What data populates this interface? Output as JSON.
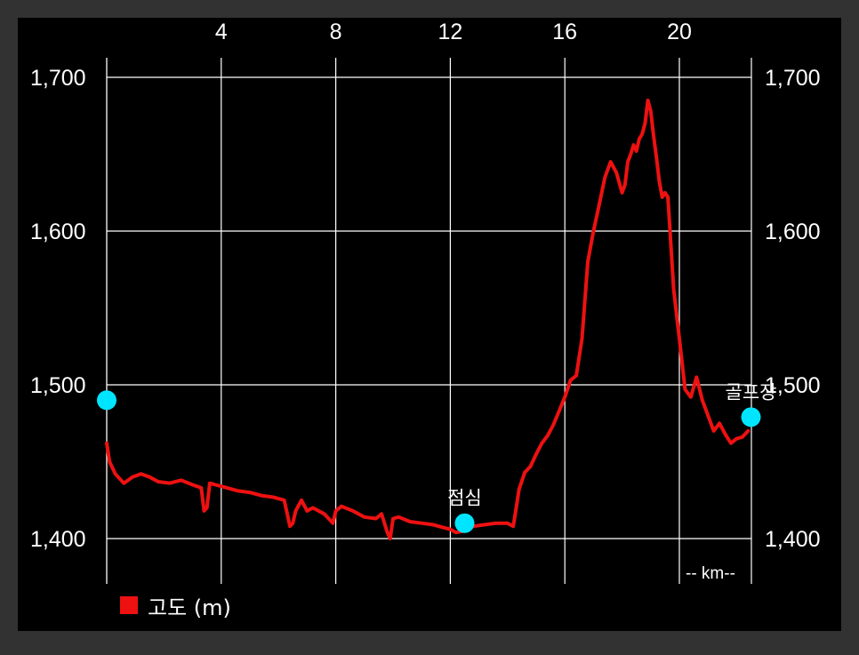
{
  "chart_data": {
    "type": "line",
    "x_unit_label": "-- km--",
    "xlim": [
      0,
      22.5
    ],
    "ylim": [
      1375,
      1715
    ],
    "x_ticks": [
      4,
      8,
      12,
      16,
      20
    ],
    "x_tick_labels": [
      "4",
      "8",
      "12",
      "16",
      "20"
    ],
    "y_ticks": [
      1400,
      1500,
      1600,
      1700
    ],
    "y_tick_labels": [
      "1,400",
      "1,500",
      "1,600",
      "1,700"
    ],
    "grid": true,
    "legend_position": "bottom-left",
    "colors": {
      "background": "#000000",
      "frame": "#323232",
      "grid": "#ffffff",
      "series": "#ee1111",
      "marker": "#00e5ff"
    },
    "series": [
      {
        "name": "고도 (m)",
        "x": [
          0,
          0.1,
          0.3,
          0.6,
          0.9,
          1.2,
          1.5,
          1.8,
          2.2,
          2.6,
          3.0,
          3.3,
          3.4,
          3.5,
          3.6,
          3.8,
          4.2,
          4.6,
          5.0,
          5.4,
          5.8,
          6.2,
          6.4,
          6.5,
          6.6,
          6.8,
          7.0,
          7.2,
          7.6,
          7.8,
          7.9,
          8.0,
          8.2,
          8.6,
          9.0,
          9.4,
          9.6,
          9.8,
          9.9,
          10.0,
          10.2,
          10.6,
          11.0,
          11.4,
          11.8,
          12.0,
          12.2,
          12.5,
          12.8,
          13.2,
          13.6,
          14.0,
          14.2,
          14.3,
          14.4,
          14.6,
          14.8,
          15.0,
          15.2,
          15.4,
          15.6,
          15.8,
          16.0,
          16.2,
          16.4,
          16.6,
          16.8,
          17.0,
          17.2,
          17.4,
          17.6,
          17.8,
          18.0,
          18.1,
          18.2,
          18.3,
          18.4,
          18.5,
          18.6,
          18.7,
          18.8,
          18.9,
          19.0,
          19.1,
          19.2,
          19.3,
          19.4,
          19.5,
          19.6,
          19.8,
          20.0,
          20.2,
          20.4,
          20.6,
          20.8,
          21.0,
          21.2,
          21.4,
          21.6,
          21.8,
          22.0,
          22.2,
          22.4
        ],
        "values": [
          1462,
          1450,
          1442,
          1436,
          1440,
          1442,
          1440,
          1437,
          1436,
          1438,
          1435,
          1433,
          1418,
          1420,
          1436,
          1435,
          1433,
          1431,
          1430,
          1428,
          1427,
          1425,
          1408,
          1410,
          1418,
          1425,
          1418,
          1420,
          1416,
          1412,
          1410,
          1418,
          1421,
          1418,
          1414,
          1413,
          1416,
          1404,
          1400,
          1413,
          1414,
          1411,
          1410,
          1409,
          1407,
          1406,
          1404,
          1405,
          1408,
          1409,
          1410,
          1410,
          1408,
          1420,
          1432,
          1443,
          1447,
          1455,
          1462,
          1467,
          1474,
          1483,
          1492,
          1503,
          1506,
          1530,
          1580,
          1600,
          1617,
          1635,
          1645,
          1638,
          1625,
          1630,
          1645,
          1650,
          1656,
          1652,
          1660,
          1663,
          1670,
          1685,
          1678,
          1662,
          1648,
          1632,
          1622,
          1625,
          1622,
          1562,
          1530,
          1497,
          1492,
          1505,
          1490,
          1480,
          1470,
          1475,
          1468,
          1462,
          1465,
          1466,
          1470
        ]
      }
    ],
    "markers": [
      {
        "x": 0,
        "y": 1490,
        "label": ""
      },
      {
        "x": 12.5,
        "y": 1410,
        "label": "점심"
      },
      {
        "x": 22.5,
        "y": 1479,
        "label": "골프장"
      }
    ]
  }
}
